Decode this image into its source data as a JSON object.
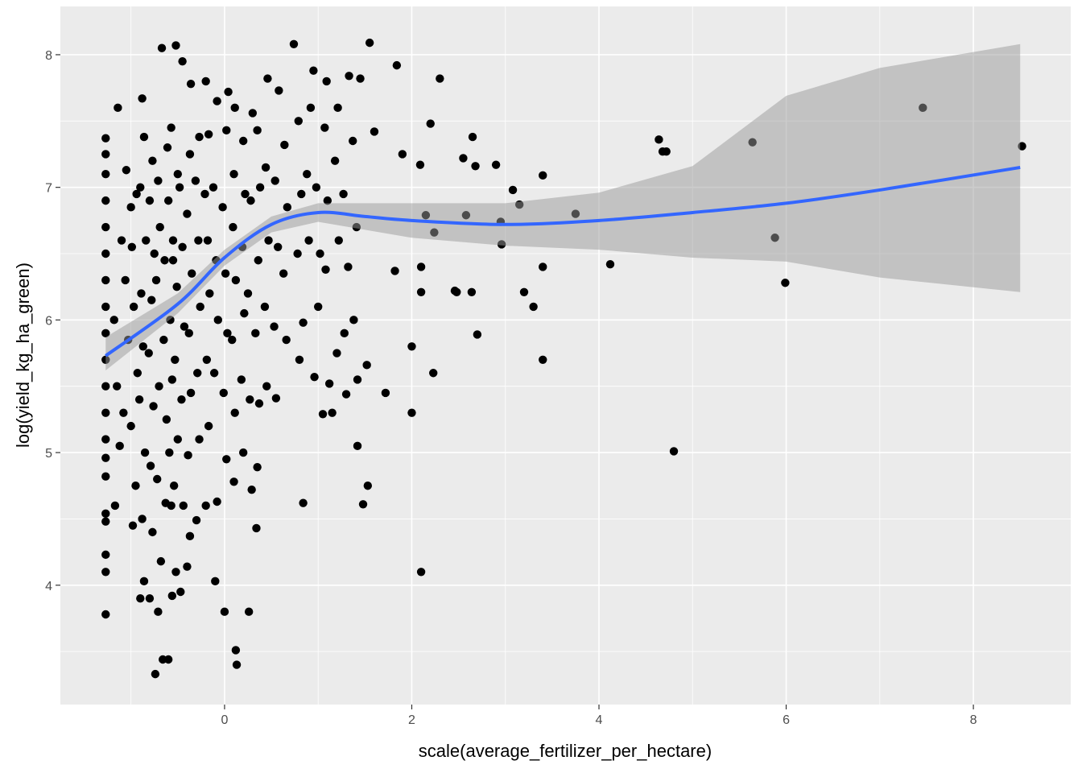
{
  "chart_data": {
    "type": "scatter",
    "x_label": "scale(average_fertilizer_per_hectare)",
    "y_label": "log(yield_kg_ha_green)",
    "xlim": [
      -1.754,
      9.04
    ],
    "ylim": [
      3.1,
      8.364
    ],
    "xticks": [
      0,
      2,
      4,
      6,
      8
    ],
    "yticks": [
      4,
      5,
      6,
      7,
      8
    ],
    "xminorticks": [
      -1,
      1,
      3,
      5,
      7
    ],
    "yminorticks": [
      3.5,
      4.5,
      5.5,
      6.5,
      7.5
    ],
    "grid": true,
    "point_color": "#000000",
    "x": [
      -1.27,
      -1.27,
      -1.27,
      -1.27,
      -1.27,
      -1.27,
      -1.27,
      -1.27,
      -1.27,
      -1.27,
      -1.27,
      -1.27,
      -1.27,
      -1.27,
      -1.27,
      -1.27,
      -1.27,
      -1.27,
      -1.27,
      -1.27,
      -1.17,
      -1.12,
      -1.15,
      -1.18,
      -1.1,
      -1.14,
      -1.08,
      -1.03,
      -1.06,
      -1.0,
      -1.05,
      -0.98,
      -0.95,
      -1.0,
      -0.93,
      -0.97,
      -0.99,
      -0.94,
      -0.9,
      -0.86,
      -0.88,
      -0.85,
      -0.91,
      -0.87,
      -0.89,
      -0.84,
      -0.9,
      -0.86,
      -0.88,
      -0.8,
      -0.77,
      -0.79,
      -0.76,
      -0.81,
      -0.78,
      -0.75,
      -0.8,
      -0.77,
      -0.74,
      -0.71,
      -0.68,
      -0.72,
      -0.7,
      -0.73,
      -0.69,
      -0.71,
      -0.66,
      -0.63,
      -0.62,
      -0.65,
      -0.64,
      -0.61,
      -0.67,
      -0.6,
      -0.57,
      -0.59,
      -0.56,
      -0.58,
      -0.55,
      -0.6,
      -0.57,
      -0.56,
      -0.52,
      -0.54,
      -0.5,
      -0.53,
      -0.51,
      -0.55,
      -0.5,
      -0.52,
      -0.47,
      -0.44,
      -0.46,
      -0.43,
      -0.45,
      -0.48,
      -0.45,
      -0.4,
      -0.37,
      -0.39,
      -0.36,
      -0.38,
      -0.35,
      -0.4,
      -0.37,
      -0.36,
      -0.3,
      -0.27,
      -0.29,
      -0.26,
      -0.28,
      -0.31,
      -0.27,
      -0.2,
      -0.17,
      -0.19,
      -0.16,
      -0.18,
      -0.21,
      -0.17,
      -0.2,
      -0.1,
      -0.08,
      -0.11,
      -0.07,
      -0.09,
      -0.12,
      -0.08,
      0.0,
      0.02,
      -0.01,
      0.03,
      0.01,
      -0.02,
      0.02,
      0.04,
      0.12,
      0.13,
      0.1,
      0.11,
      0.08,
      0.12,
      0.09,
      0.1,
      0.11,
      0.2,
      0.18,
      0.21,
      0.19,
      0.22,
      0.2,
      0.26,
      0.29,
      0.27,
      0.25,
      0.28,
      0.3,
      0.34,
      0.35,
      0.37,
      0.33,
      0.36,
      0.38,
      0.35,
      0.45,
      0.43,
      0.47,
      0.44,
      0.46,
      0.55,
      0.53,
      0.57,
      0.54,
      0.58,
      0.66,
      0.63,
      0.67,
      0.64,
      0.8,
      0.84,
      0.78,
      0.82,
      0.79,
      0.9,
      0.88,
      0.92,
      0.96,
      1.0,
      1.02,
      0.98,
      0.95,
      1.05,
      1.12,
      1.08,
      1.1,
      1.07,
      1.09,
      1.15,
      1.2,
      1.22,
      1.18,
      1.21,
      1.3,
      1.28,
      1.32,
      1.27,
      1.33,
      1.42,
      1.38,
      1.41,
      1.37,
      1.45,
      2.1,
      2.0,
      2.0,
      2.23,
      2.1,
      2.1,
      2.15,
      2.24,
      2.2,
      2.3,
      2.09,
      2.46,
      2.48,
      2.58,
      2.64,
      2.7,
      2.55,
      2.65,
      2.68,
      2.9,
      2.95,
      2.96,
      3.08,
      3.15,
      3.2,
      3.3,
      3.4,
      3.4,
      3.4,
      3.75,
      4.12,
      4.64,
      4.68,
      4.72,
      4.8,
      5.64,
      5.88,
      5.99,
      7.46,
      8.52,
      1.84,
      1.72,
      1.82,
      1.9,
      1.55,
      1.48,
      1.53,
      1.42,
      1.52,
      1.6,
      0.74,
      0.84
    ],
    "values": [
      3.78,
      4.1,
      4.23,
      4.48,
      4.54,
      4.82,
      4.96,
      5.1,
      5.3,
      5.5,
      5.7,
      5.9,
      6.1,
      6.3,
      6.5,
      6.7,
      6.9,
      7.1,
      7.25,
      7.37,
      4.6,
      5.05,
      5.5,
      6.0,
      6.6,
      7.6,
      5.3,
      5.85,
      6.3,
      6.85,
      7.13,
      4.45,
      4.75,
      5.2,
      5.6,
      6.1,
      6.55,
      6.95,
      3.9,
      4.03,
      4.5,
      5.0,
      5.4,
      5.8,
      6.2,
      6.6,
      7.0,
      7.38,
      7.67,
      3.9,
      4.4,
      4.9,
      5.35,
      5.75,
      6.15,
      6.5,
      6.9,
      7.2,
      3.33,
      3.8,
      4.18,
      4.8,
      5.5,
      6.3,
      6.7,
      7.05,
      3.44,
      4.62,
      5.25,
      5.85,
      6.45,
      7.3,
      8.05,
      3.44,
      4.6,
      5.0,
      5.55,
      6.0,
      6.45,
      6.9,
      7.45,
      3.92,
      4.1,
      4.75,
      5.1,
      5.7,
      6.25,
      6.6,
      7.1,
      8.07,
      3.95,
      4.6,
      5.4,
      5.95,
      6.55,
      7.0,
      7.95,
      4.14,
      4.37,
      4.98,
      5.45,
      5.9,
      6.35,
      6.8,
      7.25,
      7.78,
      4.49,
      5.1,
      5.6,
      6.1,
      6.6,
      7.05,
      7.38,
      4.6,
      5.2,
      5.7,
      6.2,
      6.6,
      6.95,
      7.4,
      7.8,
      4.03,
      4.63,
      5.6,
      6.0,
      6.45,
      7.0,
      7.65,
      3.8,
      4.95,
      5.45,
      5.9,
      6.35,
      6.85,
      7.43,
      7.72,
      3.51,
      3.4,
      4.78,
      5.3,
      5.85,
      6.3,
      6.7,
      7.1,
      7.6,
      5.0,
      5.55,
      6.05,
      6.55,
      6.95,
      7.35,
      3.8,
      4.72,
      5.4,
      6.2,
      6.9,
      7.56,
      4.43,
      4.89,
      5.37,
      5.9,
      6.45,
      7.0,
      7.43,
      5.5,
      6.1,
      6.6,
      7.15,
      7.82,
      5.41,
      5.95,
      6.55,
      7.05,
      7.73,
      5.85,
      6.35,
      6.85,
      7.32,
      5.7,
      5.98,
      6.5,
      6.95,
      7.5,
      6.6,
      7.1,
      7.6,
      5.57,
      6.1,
      6.5,
      7.0,
      7.88,
      5.29,
      5.52,
      6.38,
      6.9,
      7.45,
      7.8,
      5.3,
      5.75,
      6.6,
      7.2,
      7.6,
      5.44,
      5.9,
      6.4,
      6.95,
      7.84,
      5.55,
      6.0,
      6.7,
      7.35,
      7.82,
      4.1,
      5.8,
      5.3,
      5.6,
      6.4,
      6.21,
      6.79,
      6.66,
      7.48,
      7.82,
      7.17,
      6.22,
      6.21,
      6.79,
      6.21,
      5.89,
      7.22,
      7.38,
      7.16,
      7.17,
      6.74,
      6.57,
      6.98,
      6.87,
      6.21,
      6.1,
      7.09,
      6.4,
      5.7,
      6.8,
      6.42,
      7.36,
      7.27,
      7.27,
      5.01,
      7.34,
      6.62,
      6.28,
      7.6,
      7.31,
      7.92,
      5.45,
      6.37,
      7.25,
      8.09,
      4.61,
      4.75,
      5.05,
      5.66,
      7.42,
      8.08,
      4.62
    ],
    "smooth": {
      "color": "#3366ff",
      "band_color": "#999999",
      "x": [
        -1.27,
        -0.5,
        0,
        0.5,
        1,
        1.5,
        2,
        3,
        4,
        5,
        6,
        7,
        8.5
      ],
      "values": [
        5.73,
        6.12,
        6.47,
        6.72,
        6.81,
        6.78,
        6.75,
        6.72,
        6.75,
        6.81,
        6.88,
        6.98,
        7.15
      ],
      "lower": [
        5.62,
        6.05,
        6.41,
        6.66,
        6.74,
        6.68,
        6.62,
        6.56,
        6.53,
        6.47,
        6.44,
        6.32,
        6.21
      ],
      "upper": [
        5.87,
        6.2,
        6.53,
        6.78,
        6.88,
        6.88,
        6.88,
        6.88,
        6.96,
        7.16,
        7.69,
        7.9,
        8.08
      ]
    }
  }
}
